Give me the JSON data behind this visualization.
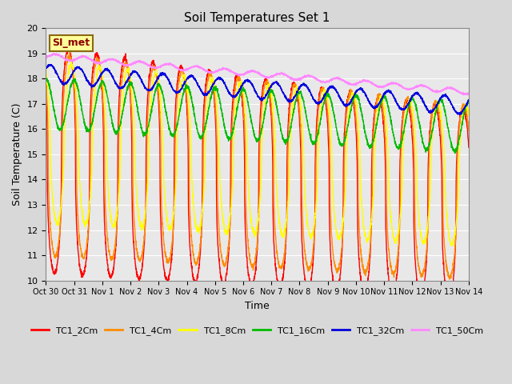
{
  "title": "Soil Temperatures Set 1",
  "xlabel": "Time",
  "ylabel": "Soil Temperature (C)",
  "ylim": [
    10.0,
    20.0
  ],
  "yticks": [
    10.0,
    11.0,
    12.0,
    13.0,
    14.0,
    15.0,
    16.0,
    17.0,
    18.0,
    19.0,
    20.0
  ],
  "xtick_labels": [
    "Oct 30",
    "Oct 31",
    "Nov 1",
    "Nov 2",
    "Nov 3",
    "Nov 4",
    "Nov 5",
    "Nov 6",
    "Nov 7",
    "Nov 8",
    "Nov 9",
    "Nov 10",
    "Nov 11",
    "Nov 12",
    "Nov 13",
    "Nov 14"
  ],
  "annotation_text": "SI_met",
  "annotation_color": "#8B0000",
  "annotation_bg": "#FFFF99",
  "annotation_border": "#8B6914",
  "fig_facecolor": "#D8D8D8",
  "ax_facecolor": "#E8E8E8",
  "grid_color": "#FFFFFF",
  "series": [
    {
      "label": "TC1_2Cm",
      "color": "#FF0000",
      "linewidth": 1.0
    },
    {
      "label": "TC1_4Cm",
      "color": "#FF8C00",
      "linewidth": 1.0
    },
    {
      "label": "TC1_8Cm",
      "color": "#FFFF00",
      "linewidth": 1.0
    },
    {
      "label": "TC1_16Cm",
      "color": "#00BB00",
      "linewidth": 1.0
    },
    {
      "label": "TC1_32Cm",
      "color": "#0000DD",
      "linewidth": 1.0
    },
    {
      "label": "TC1_50Cm",
      "color": "#FF88FF",
      "linewidth": 1.0
    }
  ]
}
